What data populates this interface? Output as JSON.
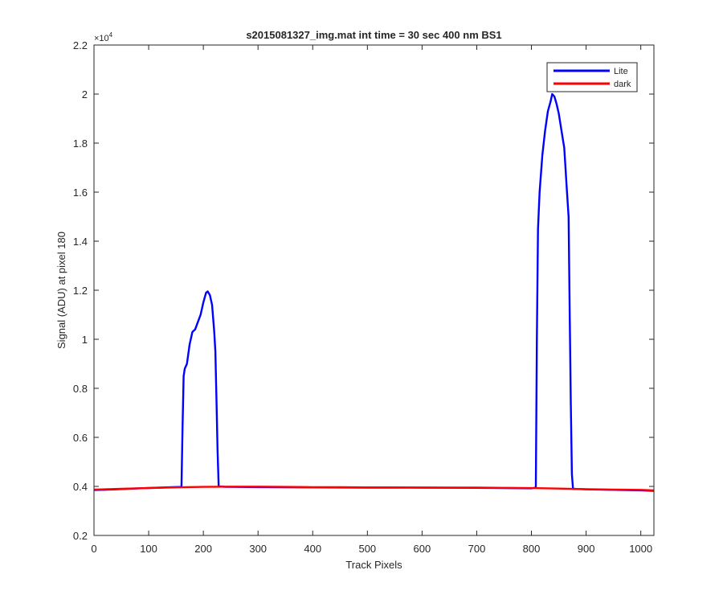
{
  "chart_data": {
    "type": "line",
    "title": "s2015081327_img.mat int time = 30 sec  400 nm BS1",
    "xlabel": "Track Pixels",
    "ylabel": "Signal (ADU) at pixel 180",
    "y_exponent_label": "×10",
    "y_exponent_power": "4",
    "xlim": [
      0,
      1024
    ],
    "ylim": [
      2000,
      22000
    ],
    "x_ticks": [
      0,
      100,
      200,
      300,
      400,
      500,
      600,
      700,
      800,
      900,
      1000
    ],
    "x_tick_labels": [
      "0",
      "100",
      "200",
      "300",
      "400",
      "500",
      "600",
      "700",
      "800",
      "900",
      "1000"
    ],
    "y_ticks": [
      2000,
      4000,
      6000,
      8000,
      10000,
      12000,
      14000,
      16000,
      18000,
      20000,
      22000
    ],
    "y_tick_labels": [
      "0.2",
      "0.4",
      "0.6",
      "0.8",
      "1",
      "1.2",
      "1.4",
      "1.6",
      "1.8",
      "2",
      "2.2"
    ],
    "grid": false,
    "legend_position": "top-right",
    "series": [
      {
        "name": "Lite",
        "color": "#0000ff",
        "x": [
          0,
          40,
          80,
          120,
          160,
          162,
          164,
          166,
          170,
          175,
          180,
          185,
          190,
          195,
          200,
          205,
          208,
          212,
          216,
          220,
          222,
          224,
          226,
          228,
          240,
          300,
          400,
          500,
          600,
          700,
          800,
          808,
          810,
          812,
          815,
          820,
          825,
          830,
          835,
          838,
          842,
          846,
          850,
          855,
          860,
          865,
          868,
          870,
          872,
          874,
          876,
          900,
          950,
          1000,
          1024
        ],
        "y": [
          3850,
          3880,
          3920,
          3950,
          3980,
          6500,
          8500,
          8800,
          9000,
          9800,
          10300,
          10400,
          10700,
          11000,
          11500,
          11900,
          11950,
          11800,
          11400,
          10300,
          9500,
          7500,
          5500,
          4000,
          3980,
          3970,
          3960,
          3950,
          3950,
          3940,
          3920,
          3950,
          10000,
          14500,
          16000,
          17500,
          18500,
          19300,
          19700,
          20000,
          19900,
          19600,
          19200,
          18500,
          17800,
          16000,
          15000,
          11000,
          7500,
          4500,
          3900,
          3880,
          3860,
          3840,
          3820
        ]
      },
      {
        "name": "dark",
        "color": "#ff0000",
        "x": [
          0,
          50,
          100,
          150,
          200,
          250,
          300,
          350,
          400,
          450,
          500,
          550,
          600,
          650,
          700,
          750,
          800,
          850,
          900,
          950,
          1000,
          1024
        ],
        "y": [
          3870,
          3900,
          3930,
          3960,
          3980,
          3990,
          3990,
          3980,
          3970,
          3970,
          3960,
          3960,
          3950,
          3950,
          3950,
          3940,
          3930,
          3910,
          3890,
          3870,
          3860,
          3840
        ]
      }
    ]
  }
}
